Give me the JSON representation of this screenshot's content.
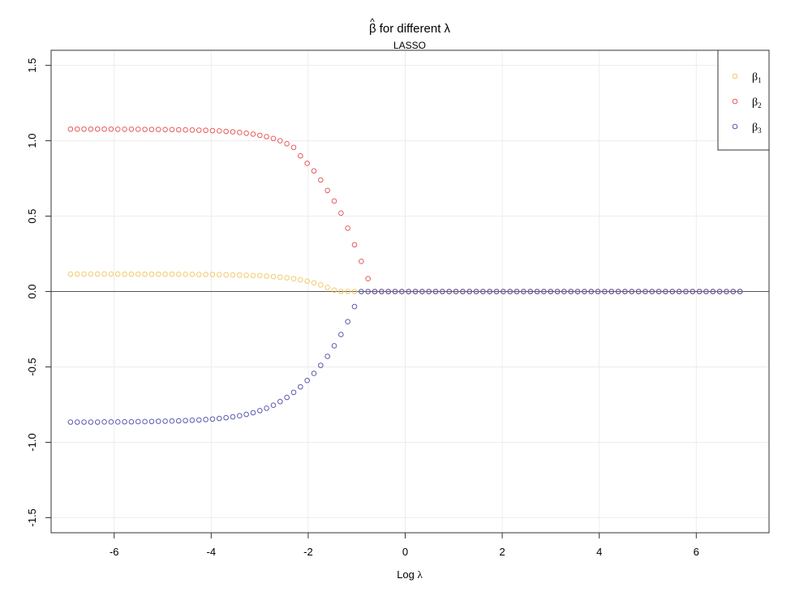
{
  "chart_data": {
    "type": "scatter",
    "title": {
      "prefix": "β",
      "hat": "^",
      "middle": " for different ",
      "lambda": "λ"
    },
    "subtitle": "LASSO",
    "xlabel": {
      "text": "Log ",
      "lambda": "λ"
    },
    "ylabel": "",
    "xlim": [
      -7.3,
      7.5
    ],
    "ylim": [
      -1.6,
      1.6
    ],
    "xticks": [
      -6,
      -4,
      -2,
      0,
      2,
      4,
      6
    ],
    "xtick_labels": [
      "-6",
      "-4",
      "-2",
      "0",
      "2",
      "4",
      "6"
    ],
    "yticks": [
      -1.5,
      -1.0,
      -0.5,
      0.0,
      0.5,
      1.0,
      1.5
    ],
    "ytick_labels": [
      "-1.5",
      "-1.0",
      "-0.5",
      "0.0",
      "0.5",
      "1.0",
      "1.5"
    ],
    "grid": true,
    "hline": 0,
    "legend_position": "top-right",
    "x_range": {
      "start": -6.9,
      "end": 6.9,
      "count": 100
    },
    "series": [
      {
        "name": "β",
        "sub": "1",
        "color": "#f5c86a",
        "values": [
          0.116,
          0.116,
          0.116,
          0.116,
          0.116,
          0.116,
          0.116,
          0.116,
          0.115,
          0.115,
          0.115,
          0.115,
          0.115,
          0.115,
          0.115,
          0.115,
          0.114,
          0.114,
          0.114,
          0.113,
          0.113,
          0.113,
          0.112,
          0.111,
          0.11,
          0.109,
          0.108,
          0.106,
          0.105,
          0.102,
          0.099,
          0.095,
          0.091,
          0.085,
          0.078,
          0.069,
          0.058,
          0.044,
          0.028,
          0.009,
          0,
          0,
          0,
          0,
          0,
          0,
          0,
          0,
          0,
          0,
          0,
          0,
          0,
          0,
          0,
          0,
          0,
          0,
          0,
          0,
          0,
          0,
          0,
          0,
          0,
          0,
          0,
          0,
          0,
          0,
          0,
          0,
          0,
          0,
          0,
          0,
          0,
          0,
          0,
          0,
          0,
          0,
          0,
          0,
          0,
          0,
          0,
          0,
          0,
          0,
          0,
          0,
          0,
          0,
          0,
          0,
          0,
          0,
          0,
          0
        ]
      },
      {
        "name": "β",
        "sub": "2",
        "color": "#e85a5a",
        "values": [
          1.077,
          1.077,
          1.077,
          1.077,
          1.077,
          1.077,
          1.077,
          1.076,
          1.076,
          1.076,
          1.076,
          1.075,
          1.075,
          1.075,
          1.074,
          1.074,
          1.073,
          1.072,
          1.071,
          1.07,
          1.069,
          1.067,
          1.065,
          1.062,
          1.059,
          1.055,
          1.05,
          1.044,
          1.036,
          1.027,
          1.015,
          1.0,
          0.98,
          0.956,
          0.9,
          0.85,
          0.8,
          0.74,
          0.67,
          0.6,
          0.52,
          0.42,
          0.31,
          0.2,
          0.085,
          0,
          0,
          0,
          0,
          0,
          0,
          0,
          0,
          0,
          0,
          0,
          0,
          0,
          0,
          0,
          0,
          0,
          0,
          0,
          0,
          0,
          0,
          0,
          0,
          0,
          0,
          0,
          0,
          0,
          0,
          0,
          0,
          0,
          0,
          0,
          0,
          0,
          0,
          0,
          0,
          0,
          0,
          0,
          0,
          0,
          0,
          0,
          0,
          0,
          0,
          0,
          0,
          0,
          0,
          0
        ]
      },
      {
        "name": "β",
        "sub": "3",
        "color": "#5a5ab0",
        "values": [
          -0.866,
          -0.866,
          -0.866,
          -0.866,
          -0.866,
          -0.865,
          -0.865,
          -0.865,
          -0.864,
          -0.864,
          -0.863,
          -0.863,
          -0.862,
          -0.861,
          -0.86,
          -0.859,
          -0.858,
          -0.856,
          -0.854,
          -0.852,
          -0.849,
          -0.846,
          -0.842,
          -0.837,
          -0.831,
          -0.824,
          -0.815,
          -0.804,
          -0.79,
          -0.774,
          -0.754,
          -0.73,
          -0.702,
          -0.669,
          -0.632,
          -0.59,
          -0.543,
          -0.49,
          -0.43,
          -0.36,
          -0.285,
          -0.2,
          -0.1,
          0,
          0,
          0,
          0,
          0,
          0,
          0,
          0,
          0,
          0,
          0,
          0,
          0,
          0,
          0,
          0,
          0,
          0,
          0,
          0,
          0,
          0,
          0,
          0,
          0,
          0,
          0,
          0,
          0,
          0,
          0,
          0,
          0,
          0,
          0,
          0,
          0,
          0,
          0,
          0,
          0,
          0,
          0,
          0,
          0,
          0,
          0,
          0,
          0,
          0,
          0,
          0,
          0,
          0,
          0,
          0,
          0
        ]
      }
    ]
  }
}
